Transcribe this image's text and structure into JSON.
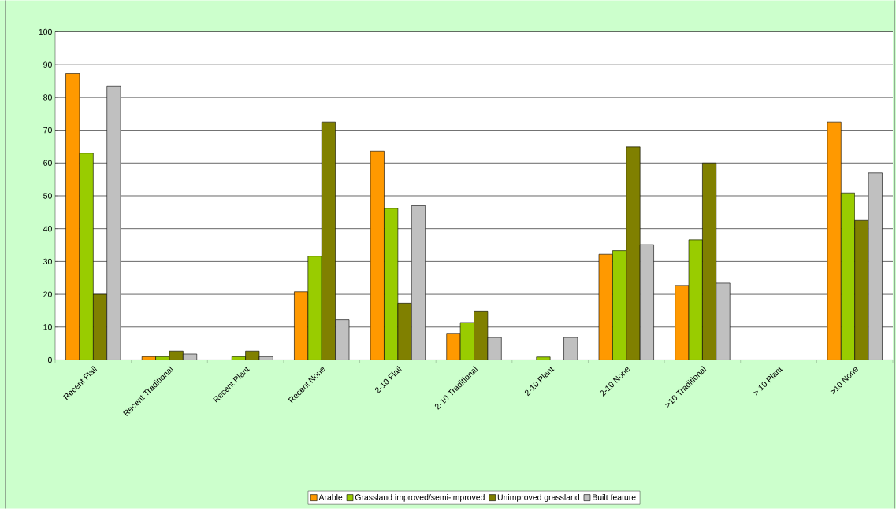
{
  "chart_data": {
    "type": "bar",
    "categories": [
      "Recent Flail",
      "Recent Traditional",
      "Recent Plant",
      "Recent None",
      "2-10 Flail",
      "2-10 Traditional",
      "2-10 Plant",
      "2-10 None",
      ">10 Traditional",
      "> 10 Plant",
      ">10 None"
    ],
    "series": [
      {
        "name": "Arable",
        "color": "#ff9900",
        "values": [
          87.3,
          1,
          0,
          20.8,
          63.6,
          8.1,
          0,
          32.2,
          22.7,
          0,
          72.5
        ]
      },
      {
        "name": "Grassland improved/semi-improved",
        "color": "#99cc00",
        "values": [
          63,
          1,
          1,
          31.6,
          46.2,
          11.4,
          0.9,
          33.3,
          36.6,
          0,
          50.9
        ]
      },
      {
        "name": "Unimproved grassland",
        "color": "#808000",
        "values": [
          20,
          2.7,
          2.7,
          72.5,
          17.3,
          14.9,
          0,
          64.9,
          60,
          0,
          42.5
        ]
      },
      {
        "name": "Built feature",
        "color": "#c0c0c0",
        "values": [
          83.5,
          1.8,
          1,
          12.2,
          47,
          6.8,
          6.8,
          35.1,
          23.4,
          0,
          57
        ]
      }
    ],
    "ylim": [
      0,
      100
    ],
    "yticks": [
      0,
      10,
      20,
      30,
      40,
      50,
      60,
      70,
      80,
      90,
      100
    ],
    "grid": "y",
    "legend": "bottom"
  }
}
